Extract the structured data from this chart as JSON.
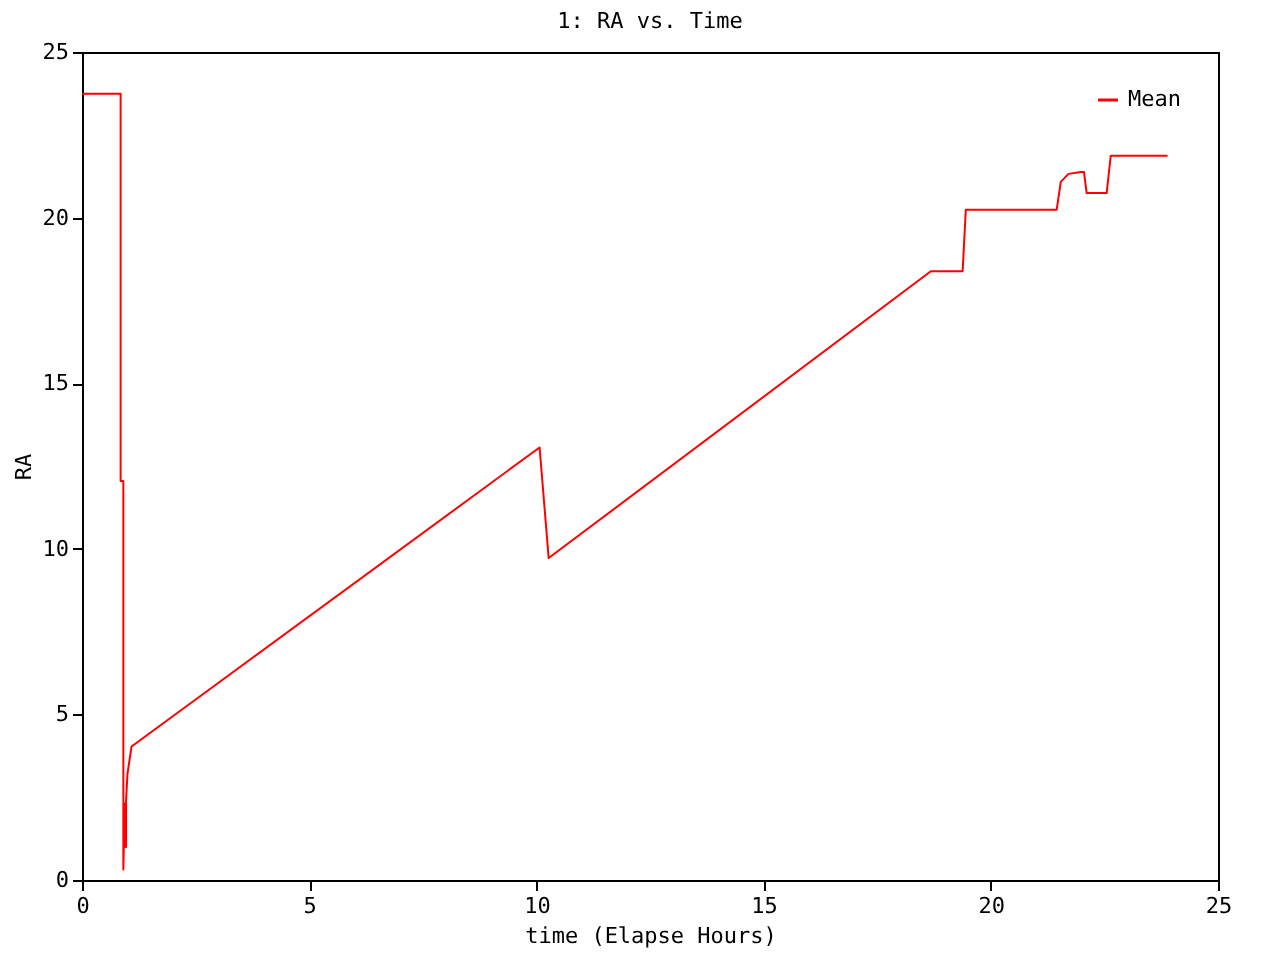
{
  "chart_data": {
    "type": "line",
    "title": "1: RA vs. Time",
    "xlabel": "time (Elapse Hours)",
    "ylabel": "RA",
    "xlim": [
      0,
      25
    ],
    "xticks": [
      0,
      5,
      10,
      15,
      20,
      25
    ],
    "ylim": [
      0,
      25
    ],
    "yticks": [
      0,
      5,
      10,
      15,
      20,
      25
    ],
    "grid": false,
    "legend": "top right",
    "marker": "none",
    "line_style": "solid",
    "series": [
      {
        "name": "Mean",
        "color": "#ff0000",
        "x": [
          0,
          0.85,
          0.85,
          0.91,
          0.91,
          0.94,
          0.94,
          0.97,
          0.97,
          1.0,
          1.0,
          1.09,
          2.9,
          10.07,
          10.27,
          18.68,
          19.38,
          19.45,
          21.45,
          21.54,
          21.71,
          21.98,
          22.05,
          22.11,
          22.55,
          22.64,
          23.89
        ],
        "values": [
          23.74,
          23.74,
          12.05,
          12.05,
          0.32,
          2.3,
          1.0,
          1.0,
          2.4,
          3.2,
          3.2,
          4.03,
          5.85,
          13.06,
          9.72,
          18.38,
          18.38,
          20.24,
          20.24,
          21.08,
          21.32,
          21.38,
          21.38,
          20.74,
          20.74,
          21.87,
          21.87
        ]
      }
    ]
  }
}
